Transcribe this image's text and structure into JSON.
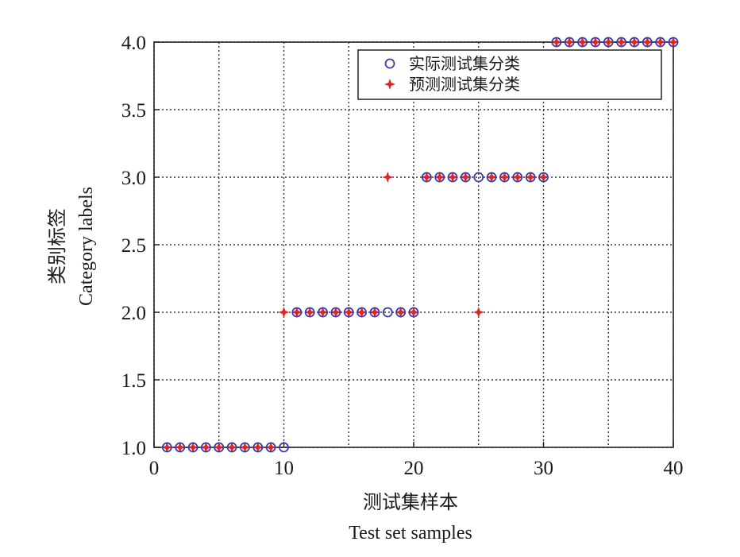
{
  "chart_data": {
    "type": "scatter",
    "xlabel": "测试集样本",
    "xlabel_en": "Test set samples",
    "ylabel": "类别标签",
    "ylabel_en": "Category labels",
    "xlim": [
      0,
      40
    ],
    "ylim": [
      1.0,
      4.0
    ],
    "xticks": [
      0,
      10,
      20,
      30,
      40
    ],
    "xtick_labels": [
      "0",
      "10",
      "20",
      "30",
      "40"
    ],
    "yticks": [
      1.0,
      1.5,
      2.0,
      2.5,
      3.0,
      3.5,
      4.0
    ],
    "ytick_labels": [
      "1.0",
      "1.5",
      "2.0",
      "2.5",
      "3.0",
      "3.5",
      "4.0"
    ],
    "grid": true,
    "legend_position": "top-right",
    "x": [
      1,
      2,
      3,
      4,
      5,
      6,
      7,
      8,
      9,
      10,
      11,
      12,
      13,
      14,
      15,
      16,
      17,
      18,
      19,
      20,
      21,
      22,
      23,
      24,
      25,
      26,
      27,
      28,
      29,
      30,
      31,
      32,
      33,
      34,
      35,
      36,
      37,
      38,
      39,
      40
    ],
    "series": [
      {
        "name": "实际测试集分类",
        "marker": "circle",
        "color": "#3a3aa8",
        "values": [
          1,
          1,
          1,
          1,
          1,
          1,
          1,
          1,
          1,
          1,
          2,
          2,
          2,
          2,
          2,
          2,
          2,
          2,
          2,
          2,
          3,
          3,
          3,
          3,
          3,
          3,
          3,
          3,
          3,
          3,
          4,
          4,
          4,
          4,
          4,
          4,
          4,
          4,
          4,
          4
        ]
      },
      {
        "name": "预测测试集分类",
        "marker": "star",
        "color": "#e02424",
        "values": [
          1,
          1,
          1,
          1,
          1,
          1,
          1,
          1,
          1,
          2,
          2,
          2,
          2,
          2,
          2,
          2,
          2,
          3,
          2,
          2,
          3,
          3,
          3,
          3,
          2,
          3,
          3,
          3,
          3,
          3,
          4,
          4,
          4,
          4,
          4,
          4,
          4,
          4,
          4,
          4
        ]
      }
    ]
  }
}
